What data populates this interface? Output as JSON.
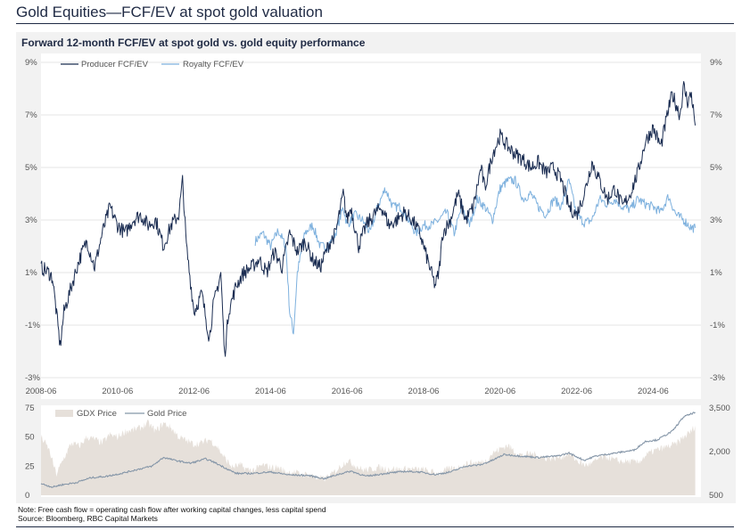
{
  "page_title": "Gold Equities—FCF/EV at spot gold valuation",
  "note": "Note: Free cash flow = operating cash flow after working capital changes, less capital spend",
  "source": "Source: Bloomberg, RBC Capital Markets",
  "colors": {
    "producer": "#1b2d52",
    "royalty": "#7eb1de",
    "gdx_fill": "#e6e0da",
    "gold_line": "#8596a8"
  },
  "chart_data": [
    {
      "type": "line",
      "title": "Forward 12-month FCF/EV at spot gold vs. gold equity performance",
      "ylim": [
        -3,
        9
      ],
      "y_ticks": [
        -3,
        -1,
        1,
        3,
        5,
        7,
        9
      ],
      "y_tick_labels": [
        "-3%",
        "-1%",
        "1%",
        "3%",
        "5%",
        "7%",
        "9%"
      ],
      "x_range": [
        2008.5,
        2025.75
      ],
      "x_tick_positions": [
        2008.5,
        2010.5,
        2012.5,
        2014.5,
        2016.5,
        2018.5,
        2020.5,
        2022.5,
        2024.5
      ],
      "x_tick_labels": [
        "2008-06",
        "2010-06",
        "2012-06",
        "2014-06",
        "2016-06",
        "2018-06",
        "2020-06",
        "2022-06",
        "2024-06"
      ],
      "legend": [
        "Producer FCF/EV",
        "Royalty  FCF/EV"
      ],
      "series": [
        {
          "name": "Producer FCF/EV",
          "x": [
            2008.5,
            2008.7,
            2008.8,
            2009.0,
            2009.1,
            2009.3,
            2009.5,
            2009.7,
            2009.9,
            2010.1,
            2010.3,
            2010.5,
            2010.7,
            2010.9,
            2011.1,
            2011.3,
            2011.5,
            2011.7,
            2011.9,
            2012.1,
            2012.2,
            2012.3,
            2012.5,
            2012.7,
            2012.9,
            2013.0,
            2013.2,
            2013.3,
            2013.4,
            2013.6,
            2013.8,
            2014.0,
            2014.2,
            2014.4,
            2014.6,
            2014.8,
            2015.0,
            2015.2,
            2015.4,
            2015.6,
            2015.8,
            2016.0,
            2016.2,
            2016.4,
            2016.5,
            2016.6,
            2016.8,
            2017.0,
            2017.2,
            2017.4,
            2017.6,
            2017.8,
            2018.0,
            2018.2,
            2018.4,
            2018.6,
            2018.8,
            2018.9,
            2019.0,
            2019.2,
            2019.4,
            2019.6,
            2019.8,
            2020.0,
            2020.1,
            2020.3,
            2020.5,
            2020.7,
            2020.9,
            2021.1,
            2021.3,
            2021.5,
            2021.7,
            2021.9,
            2022.1,
            2022.3,
            2022.5,
            2022.7,
            2022.9,
            2023.1,
            2023.3,
            2023.5,
            2023.7,
            2023.9,
            2024.1,
            2024.3,
            2024.5,
            2024.7,
            2024.9,
            2025.0,
            2025.2,
            2025.3,
            2025.4,
            2025.5,
            2025.6
          ],
          "y": [
            1.2,
            1.0,
            0.8,
            -1.8,
            -0.5,
            0.5,
            1.5,
            2.2,
            1.2,
            2.5,
            3.5,
            2.8,
            2.5,
            3.0,
            3.2,
            2.8,
            3.0,
            2.0,
            2.8,
            3.2,
            4.5,
            2.0,
            -0.5,
            0.2,
            -1.5,
            -0.3,
            1.0,
            -2.2,
            -0.5,
            0.5,
            1.0,
            1.2,
            1.5,
            1.0,
            1.8,
            1.2,
            2.5,
            1.8,
            2.2,
            1.5,
            1.2,
            2.0,
            2.5,
            4.0,
            3.0,
            3.5,
            2.0,
            2.8,
            3.2,
            3.5,
            2.8,
            3.0,
            3.3,
            3.0,
            2.5,
            1.5,
            0.5,
            1.0,
            2.5,
            3.0,
            4.0,
            3.0,
            3.5,
            5.0,
            4.2,
            5.5,
            6.2,
            5.8,
            5.5,
            5.3,
            5.0,
            5.2,
            4.8,
            5.0,
            4.5,
            3.5,
            3.2,
            4.0,
            5.2,
            4.5,
            3.8,
            4.2,
            3.5,
            4.0,
            4.8,
            6.0,
            6.5,
            5.8,
            7.2,
            7.8,
            7.0,
            8.1,
            7.5,
            7.8,
            6.6
          ]
        },
        {
          "name": "Royalty  FCF/EV",
          "x": [
            2014.1,
            2014.3,
            2014.5,
            2014.7,
            2014.9,
            2015.0,
            2015.1,
            2015.2,
            2015.4,
            2015.6,
            2015.8,
            2016.0,
            2016.2,
            2016.4,
            2016.5,
            2016.7,
            2016.9,
            2017.1,
            2017.3,
            2017.5,
            2017.7,
            2017.9,
            2018.1,
            2018.3,
            2018.5,
            2018.7,
            2018.9,
            2019.1,
            2019.3,
            2019.5,
            2019.7,
            2019.9,
            2020.1,
            2020.3,
            2020.5,
            2020.7,
            2020.9,
            2021.1,
            2021.3,
            2021.5,
            2021.7,
            2021.9,
            2022.1,
            2022.3,
            2022.5,
            2022.7,
            2022.9,
            2023.1,
            2023.3,
            2023.5,
            2023.7,
            2023.9,
            2024.1,
            2024.3,
            2024.5,
            2024.7,
            2024.9,
            2025.1,
            2025.3,
            2025.5,
            2025.6
          ],
          "y": [
            2.2,
            2.5,
            2.0,
            2.6,
            2.0,
            -0.5,
            -1.3,
            1.0,
            2.5,
            2.8,
            2.0,
            2.0,
            2.5,
            3.5,
            2.8,
            3.2,
            3.0,
            2.5,
            3.5,
            4.2,
            3.5,
            3.5,
            3.0,
            2.5,
            2.8,
            2.8,
            3.0,
            3.3,
            2.5,
            3.5,
            2.8,
            3.8,
            3.5,
            3.0,
            4.2,
            4.5,
            4.5,
            3.8,
            4.0,
            3.5,
            3.2,
            3.8,
            3.5,
            4.5,
            3.2,
            2.9,
            3.0,
            3.8,
            3.6,
            3.8,
            3.5,
            3.4,
            3.8,
            3.6,
            3.5,
            3.3,
            3.9,
            3.2,
            3.0,
            2.7,
            2.7
          ]
        }
      ]
    },
    {
      "type": "area",
      "ylim_left": [
        0,
        75
      ],
      "left_ticks": [
        0,
        25,
        50,
        75
      ],
      "left_tick_labels": [
        "0",
        "25",
        "50",
        "75"
      ],
      "ylim_right": [
        500,
        3500
      ],
      "right_ticks": [
        500,
        2000,
        3500
      ],
      "right_tick_labels": [
        "500",
        "2,000",
        "3,500"
      ],
      "x_range": [
        2008.5,
        2025.75
      ],
      "legend": [
        "GDX Price",
        "Gold Price"
      ],
      "series": [
        {
          "name": "GDX Price",
          "axis": "left",
          "x": [
            2008.5,
            2008.7,
            2008.9,
            2009.1,
            2009.3,
            2009.5,
            2009.7,
            2009.9,
            2010.1,
            2010.3,
            2010.5,
            2010.7,
            2010.9,
            2011.1,
            2011.3,
            2011.5,
            2011.7,
            2011.9,
            2012.1,
            2012.3,
            2012.5,
            2012.7,
            2012.9,
            2013.1,
            2013.3,
            2013.5,
            2013.7,
            2013.9,
            2014.1,
            2014.3,
            2014.5,
            2014.7,
            2014.9,
            2015.1,
            2015.3,
            2015.5,
            2015.7,
            2015.9,
            2016.1,
            2016.3,
            2016.5,
            2016.7,
            2016.9,
            2017.1,
            2017.3,
            2017.5,
            2017.7,
            2017.9,
            2018.1,
            2018.3,
            2018.5,
            2018.7,
            2018.9,
            2019.1,
            2019.3,
            2019.5,
            2019.7,
            2019.9,
            2020.1,
            2020.3,
            2020.5,
            2020.7,
            2020.9,
            2021.1,
            2021.3,
            2021.5,
            2021.7,
            2021.9,
            2022.1,
            2022.3,
            2022.5,
            2022.7,
            2022.9,
            2023.1,
            2023.3,
            2023.5,
            2023.7,
            2023.9,
            2024.1,
            2024.3,
            2024.5,
            2024.7,
            2024.9,
            2025.1,
            2025.3,
            2025.5,
            2025.6
          ],
          "y": [
            50,
            40,
            18,
            32,
            45,
            42,
            50,
            48,
            45,
            52,
            50,
            55,
            56,
            58,
            62,
            55,
            62,
            58,
            50,
            47,
            44,
            45,
            48,
            42,
            32,
            24,
            26,
            22,
            22,
            26,
            24,
            24,
            20,
            20,
            18,
            18,
            15,
            14,
            18,
            24,
            30,
            26,
            22,
            22,
            24,
            23,
            23,
            22,
            23,
            22,
            22,
            20,
            19,
            22,
            23,
            25,
            28,
            28,
            29,
            36,
            40,
            43,
            37,
            34,
            36,
            34,
            32,
            32,
            33,
            36,
            30,
            26,
            27,
            32,
            33,
            30,
            29,
            29,
            28,
            34,
            38,
            40,
            42,
            44,
            50,
            55,
            60
          ]
        },
        {
          "name": "Gold Price",
          "axis": "right",
          "x": [
            2008.5,
            2008.8,
            2009.0,
            2009.4,
            2009.8,
            2010.2,
            2010.6,
            2011.0,
            2011.4,
            2011.7,
            2012.0,
            2012.4,
            2012.8,
            2013.0,
            2013.3,
            2013.6,
            2014.0,
            2014.5,
            2015.0,
            2015.5,
            2015.9,
            2016.3,
            2016.6,
            2017.0,
            2017.5,
            2018.0,
            2018.4,
            2018.8,
            2019.2,
            2019.6,
            2020.0,
            2020.3,
            2020.6,
            2021.0,
            2021.5,
            2022.0,
            2022.3,
            2022.7,
            2023.0,
            2023.5,
            2024.0,
            2024.3,
            2024.6,
            2025.0,
            2025.3,
            2025.6
          ],
          "y": [
            900,
            780,
            850,
            930,
            1100,
            1150,
            1250,
            1380,
            1500,
            1800,
            1700,
            1600,
            1750,
            1650,
            1450,
            1250,
            1250,
            1300,
            1200,
            1180,
            1070,
            1230,
            1330,
            1150,
            1250,
            1320,
            1300,
            1210,
            1300,
            1500,
            1550,
            1700,
            1900,
            1850,
            1800,
            1850,
            1950,
            1700,
            1850,
            1950,
            2050,
            2350,
            2400,
            2700,
            3200,
            3350
          ]
        }
      ]
    }
  ]
}
